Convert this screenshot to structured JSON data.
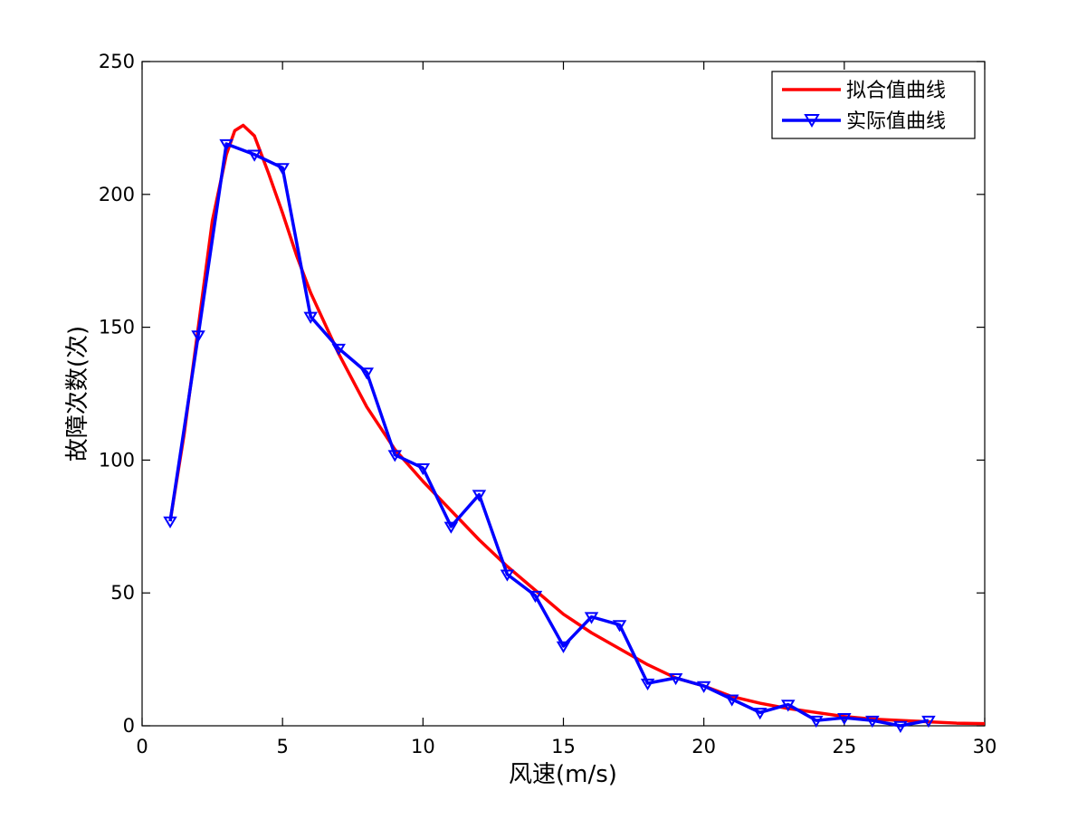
{
  "chart_data": {
    "type": "line",
    "title": "",
    "xlabel": "风速(m/s)",
    "ylabel": "故障次数(次)",
    "xlim": [
      0,
      30
    ],
    "ylim": [
      0,
      250
    ],
    "xticks": [
      0,
      5,
      10,
      15,
      20,
      25,
      30
    ],
    "yticks": [
      0,
      50,
      100,
      150,
      200,
      250
    ],
    "grid": false,
    "legend_position": "top-right",
    "series": [
      {
        "name": "拟合值曲线",
        "color": "#ff0000",
        "marker": "none",
        "x": [
          1,
          1.5,
          2,
          2.5,
          3,
          3.3,
          3.6,
          4,
          4.5,
          5,
          5.5,
          6,
          7,
          8,
          9,
          10,
          11,
          12,
          13,
          14,
          15,
          16,
          17,
          18,
          19,
          20,
          21,
          22,
          23,
          24,
          25,
          26,
          27,
          28,
          29,
          30
        ],
        "y": [
          77,
          110,
          150,
          190,
          215,
          224,
          226,
          222,
          208,
          193,
          177,
          163,
          140,
          120,
          104,
          92,
          81,
          70,
          60,
          51,
          42,
          35,
          29,
          23,
          18,
          15,
          11,
          8.5,
          6.5,
          5,
          3.5,
          2.5,
          2,
          1.5,
          1,
          0.8
        ]
      },
      {
        "name": "实际值曲线",
        "color": "#0000ff",
        "marker": "triangle-down",
        "x": [
          1,
          2,
          3,
          4,
          5,
          6,
          7,
          8,
          9,
          10,
          11,
          12,
          13,
          14,
          15,
          16,
          17,
          18,
          19,
          20,
          21,
          22,
          23,
          24,
          25,
          26,
          27,
          28
        ],
        "y": [
          77,
          147,
          219,
          215,
          210,
          154,
          142,
          133,
          102,
          97,
          75,
          87,
          57,
          49,
          30,
          41,
          38,
          16,
          18,
          15,
          10,
          5,
          8,
          2,
          3,
          2,
          0,
          2
        ]
      }
    ]
  }
}
